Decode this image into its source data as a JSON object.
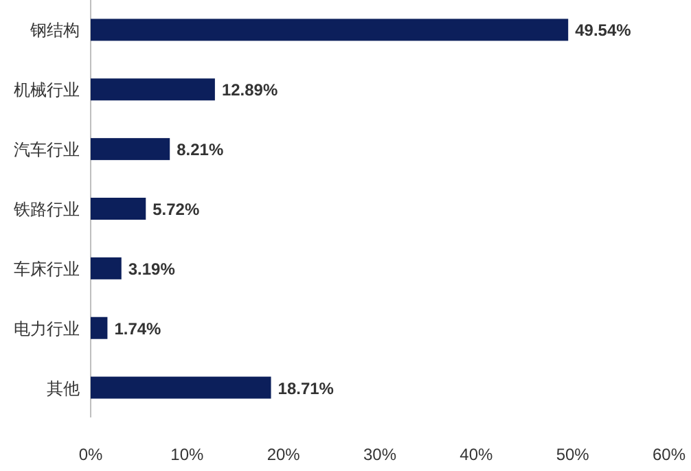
{
  "chart_data": {
    "type": "bar",
    "orientation": "horizontal",
    "categories": [
      "钢结构",
      "机械行业",
      "汽车行业",
      "铁路行业",
      "车床行业",
      "电力行业",
      "其他"
    ],
    "values": [
      49.54,
      12.89,
      8.21,
      5.72,
      3.19,
      1.74,
      18.71
    ],
    "value_labels": [
      "49.54%",
      "12.89%",
      "8.21%",
      "5.72%",
      "3.19%",
      "1.74%",
      "18.71%"
    ],
    "color": "#0c1f5b",
    "xlim": [
      0,
      60
    ],
    "xticks": [
      {
        "value": 0,
        "label": "0%"
      },
      {
        "value": 10,
        "label": "10%"
      },
      {
        "value": 20,
        "label": "20%"
      },
      {
        "value": 30,
        "label": "30%"
      },
      {
        "value": 40,
        "label": "40%"
      },
      {
        "value": 50,
        "label": "50%"
      },
      {
        "value": 60,
        "label": "60%"
      }
    ],
    "grid": false
  }
}
